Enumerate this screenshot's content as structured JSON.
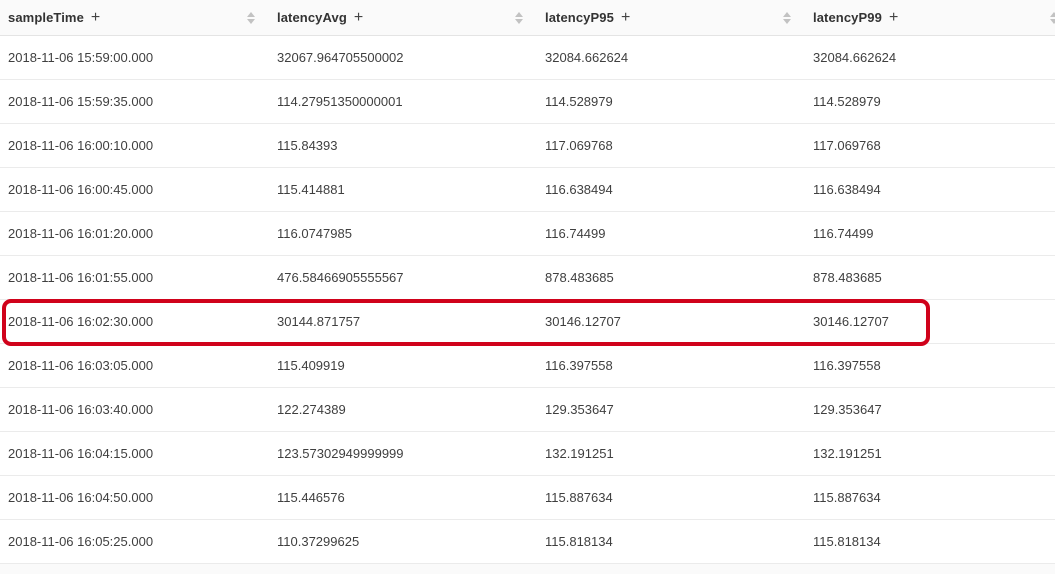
{
  "table": {
    "columns": [
      {
        "key": "sampleTime",
        "label": "sampleTime",
        "add_icon": "+"
      },
      {
        "key": "latencyAvg",
        "label": "latencyAvg",
        "add_icon": "+"
      },
      {
        "key": "latencyP95",
        "label": "latencyP95",
        "add_icon": "+"
      },
      {
        "key": "latencyP99",
        "label": "latencyP99",
        "add_icon": "+"
      }
    ],
    "rows": [
      {
        "sampleTime": "2018-11-06 15:59:00.000",
        "latencyAvg": "32067.964705500002",
        "latencyP95": "32084.662624",
        "latencyP99": "32084.662624"
      },
      {
        "sampleTime": "2018-11-06 15:59:35.000",
        "latencyAvg": "114.27951350000001",
        "latencyP95": "114.528979",
        "latencyP99": "114.528979"
      },
      {
        "sampleTime": "2018-11-06 16:00:10.000",
        "latencyAvg": "115.84393",
        "latencyP95": "117.069768",
        "latencyP99": "117.069768"
      },
      {
        "sampleTime": "2018-11-06 16:00:45.000",
        "latencyAvg": "115.414881",
        "latencyP95": "116.638494",
        "latencyP99": "116.638494"
      },
      {
        "sampleTime": "2018-11-06 16:01:20.000",
        "latencyAvg": "116.0747985",
        "latencyP95": "116.74499",
        "latencyP99": "116.74499"
      },
      {
        "sampleTime": "2018-11-06 16:01:55.000",
        "latencyAvg": "476.58466905555567",
        "latencyP95": "878.483685",
        "latencyP99": "878.483685"
      },
      {
        "sampleTime": "2018-11-06 16:02:30.000",
        "latencyAvg": "30144.871757",
        "latencyP95": "30146.12707",
        "latencyP99": "30146.12707"
      },
      {
        "sampleTime": "2018-11-06 16:03:05.000",
        "latencyAvg": "115.409919",
        "latencyP95": "116.397558",
        "latencyP99": "116.397558"
      },
      {
        "sampleTime": "2018-11-06 16:03:40.000",
        "latencyAvg": "122.274389",
        "latencyP95": "129.353647",
        "latencyP99": "129.353647"
      },
      {
        "sampleTime": "2018-11-06 16:04:15.000",
        "latencyAvg": "123.57302949999999",
        "latencyP95": "132.191251",
        "latencyP99": "132.191251"
      },
      {
        "sampleTime": "2018-11-06 16:04:50.000",
        "latencyAvg": "115.446576",
        "latencyP95": "115.887634",
        "latencyP99": "115.887634"
      },
      {
        "sampleTime": "2018-11-06 16:05:25.000",
        "latencyAvg": "110.37299625",
        "latencyP95": "115.818134",
        "latencyP99": "115.818134"
      }
    ]
  },
  "highlight": {
    "row_index": 6,
    "color": "#d0021b",
    "note": "red annotation box around row 2018-11-06 16:02:30.000"
  },
  "style_tokens": {
    "header_bg": "#fafafa",
    "row_border": "#ebebeb",
    "sort_icon_color": "#c2c2c2"
  }
}
